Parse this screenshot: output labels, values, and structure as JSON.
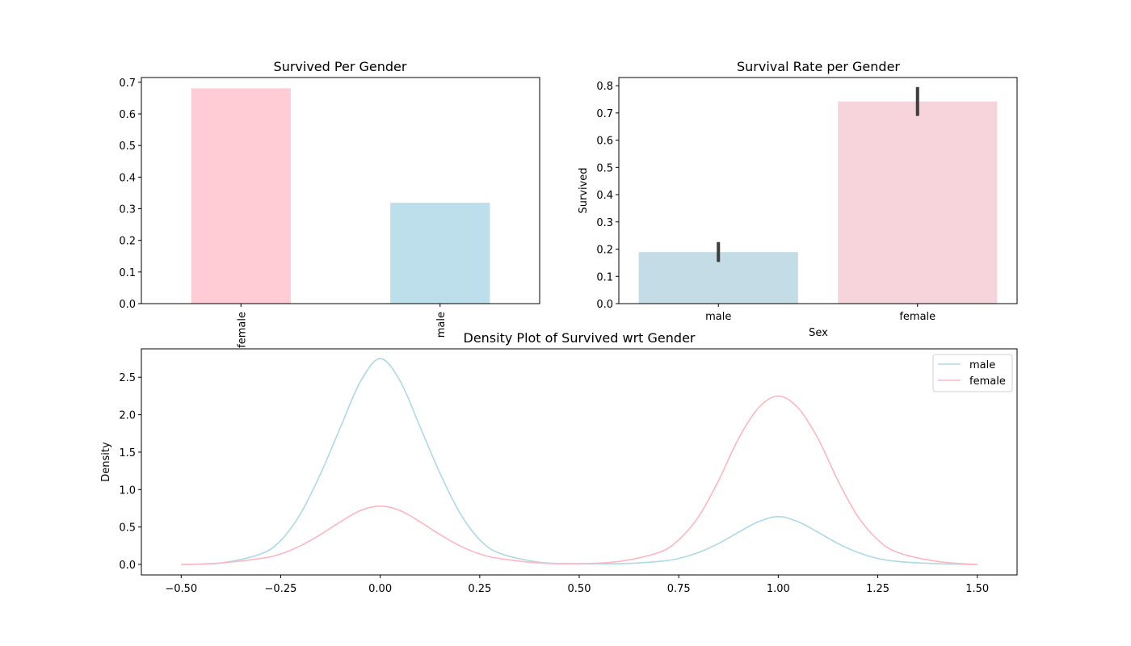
{
  "chart_data": [
    {
      "type": "bar",
      "title": "Survived Per Gender",
      "xlabel": "",
      "ylabel": "",
      "categories": [
        "female",
        "male"
      ],
      "values": [
        0.681,
        0.319
      ],
      "colors": [
        "#ffcbd5",
        "#bddfeb"
      ],
      "ylim": [
        0,
        0.715
      ],
      "yticks": [
        "0.0",
        "0.1",
        "0.2",
        "0.3",
        "0.4",
        "0.5",
        "0.6",
        "0.7"
      ],
      "xtick_rotation": "vertical",
      "grid": false
    },
    {
      "type": "bar",
      "title": "Survival Rate per Gender",
      "xlabel": "Sex",
      "ylabel": "Survived",
      "categories": [
        "male",
        "female"
      ],
      "values": [
        0.189,
        0.742
      ],
      "error_bars": [
        [
          0.153,
          0.226
        ],
        [
          0.689,
          0.795
        ]
      ],
      "colors": [
        "#c3dce5",
        "#f7d3db"
      ],
      "ylim": [
        0,
        0.83
      ],
      "yticks": [
        "0.0",
        "0.1",
        "0.2",
        "0.3",
        "0.4",
        "0.5",
        "0.6",
        "0.7",
        "0.8"
      ],
      "grid": false
    },
    {
      "type": "line",
      "title": "Density Plot of Survived wrt Gender",
      "xlabel": "",
      "ylabel": "Density",
      "xlim": [
        -0.6,
        1.6
      ],
      "ylim": [
        -0.14,
        2.88
      ],
      "xticks": [
        "−0.50",
        "−0.25",
        "0.00",
        "0.25",
        "0.50",
        "0.75",
        "1.00",
        "1.25",
        "1.50"
      ],
      "yticks": [
        "0.0",
        "0.5",
        "1.0",
        "1.5",
        "2.0",
        "2.5"
      ],
      "legend_position": "top-right",
      "grid": false,
      "series": [
        {
          "name": "male",
          "color": "#add8e6",
          "x": [
            -0.5,
            -0.4,
            -0.3,
            -0.25,
            -0.2,
            -0.15,
            -0.1,
            -0.05,
            0.0,
            0.05,
            0.1,
            0.15,
            0.2,
            0.25,
            0.3,
            0.4,
            0.5,
            0.6,
            0.7,
            0.75,
            0.8,
            0.85,
            0.9,
            0.95,
            1.0,
            1.05,
            1.1,
            1.15,
            1.2,
            1.25,
            1.3,
            1.4,
            1.5
          ],
          "y": [
            0.0,
            0.02,
            0.14,
            0.32,
            0.68,
            1.21,
            1.83,
            2.44,
            2.75,
            2.45,
            1.84,
            1.22,
            0.69,
            0.33,
            0.15,
            0.03,
            0.01,
            0.01,
            0.04,
            0.08,
            0.16,
            0.28,
            0.43,
            0.57,
            0.64,
            0.57,
            0.43,
            0.28,
            0.16,
            0.08,
            0.04,
            0.01,
            0.0
          ]
        },
        {
          "name": "female",
          "color": "#ffb6c1",
          "x": [
            -0.5,
            -0.4,
            -0.3,
            -0.25,
            -0.2,
            -0.15,
            -0.1,
            -0.05,
            0.0,
            0.05,
            0.1,
            0.15,
            0.2,
            0.25,
            0.3,
            0.4,
            0.5,
            0.6,
            0.7,
            0.75,
            0.8,
            0.85,
            0.9,
            0.95,
            1.0,
            1.05,
            1.1,
            1.15,
            1.2,
            1.25,
            1.3,
            1.4,
            1.5
          ],
          "y": [
            0.0,
            0.02,
            0.08,
            0.14,
            0.25,
            0.4,
            0.57,
            0.72,
            0.78,
            0.72,
            0.57,
            0.4,
            0.25,
            0.14,
            0.08,
            0.02,
            0.01,
            0.04,
            0.16,
            0.33,
            0.64,
            1.12,
            1.68,
            2.09,
            2.25,
            2.09,
            1.68,
            1.12,
            0.64,
            0.33,
            0.16,
            0.04,
            0.0
          ]
        }
      ]
    }
  ]
}
